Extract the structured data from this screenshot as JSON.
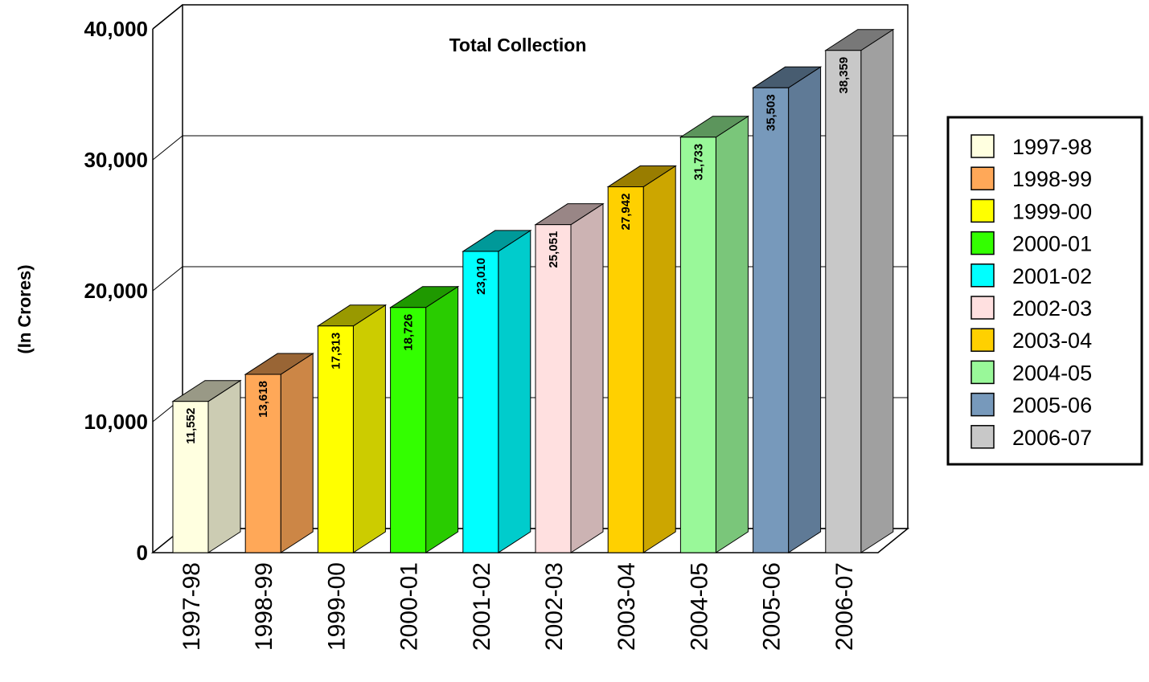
{
  "chart_data": {
    "type": "bar",
    "title": "Total Collection",
    "xlabel": "",
    "ylabel": "(In Crores)",
    "ylim": [
      0,
      40000
    ],
    "yticks": [
      "0",
      "10,000",
      "20,000",
      "30,000",
      "40,000"
    ],
    "grid": true,
    "legend_position": "right",
    "categories": [
      "1997-98",
      "1998-99",
      "1999-00",
      "2000-01",
      "2001-02",
      "2002-03",
      "2003-04",
      "2004-05",
      "2005-06",
      "2006-07"
    ],
    "values": [
      11552,
      13618,
      17313,
      18726,
      23010,
      25051,
      27942,
      31733,
      35503,
      38359
    ],
    "value_labels": [
      "11,552",
      "13,618",
      "17,313",
      "18,726",
      "23,010",
      "25,051",
      "27,942",
      "31,733",
      "35,503",
      "38,359"
    ],
    "colors": [
      "#FFFFE0",
      "#FFA858",
      "#FFFF00",
      "#33FF00",
      "#00FFFF",
      "#FFE0E0",
      "#FFD000",
      "#99F899",
      "#7799BB",
      "#C8C8C8"
    ]
  }
}
